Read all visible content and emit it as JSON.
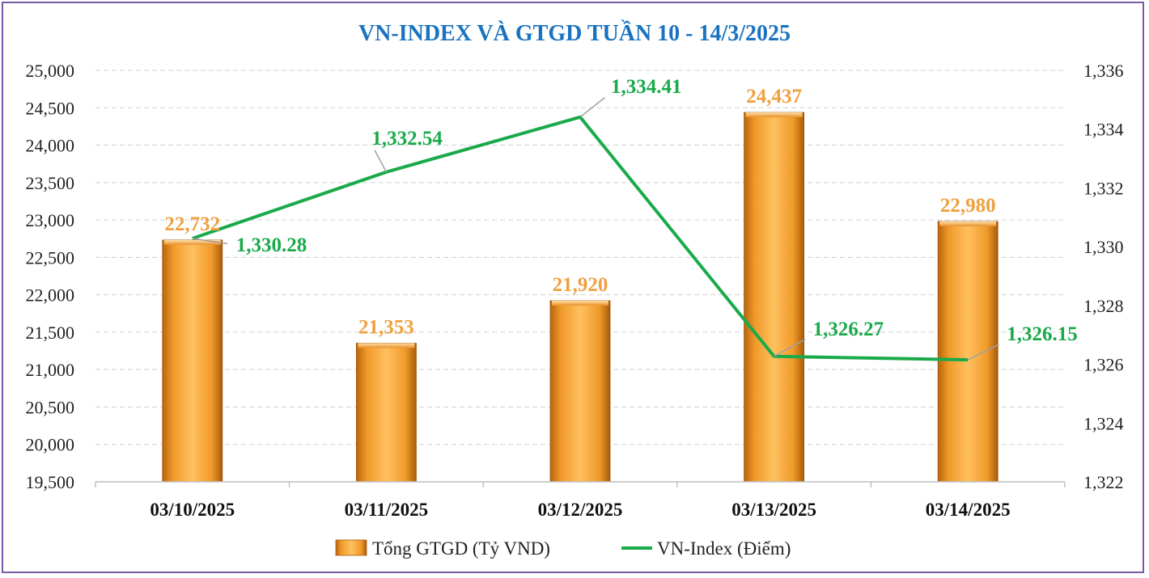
{
  "chart_data": {
    "type": "bar+line",
    "title": "VN-INDEX VÀ GTGD TUẦN 10 - 14/3/2025",
    "categories": [
      "03/10/2025",
      "03/11/2025",
      "03/12/2025",
      "03/13/2025",
      "03/14/2025"
    ],
    "series": [
      {
        "name": "Tổng GTGD (Tỷ VND)",
        "kind": "bar",
        "axis": "left",
        "values": [
          22732,
          21353,
          21920,
          24437,
          22980
        ],
        "labels": [
          "22,732",
          "21,353",
          "21,920",
          "24,437",
          "22,980"
        ],
        "color": "#f5a030"
      },
      {
        "name": "VN-Index (Điểm)",
        "kind": "line",
        "axis": "right",
        "values": [
          1330.28,
          1332.54,
          1334.41,
          1326.27,
          1326.15
        ],
        "labels": [
          "1,330.28",
          "1,332.54",
          "1,334.41",
          "1,326.27",
          "1,326.15"
        ],
        "color": "#1aaa4a"
      }
    ],
    "y_left": {
      "range": [
        19500,
        25000
      ],
      "ticks": [
        "25,000",
        "24,500",
        "24,000",
        "23,500",
        "23,000",
        "22,500",
        "22,000",
        "21,500",
        "21,000",
        "20,500",
        "20,000",
        "19,500"
      ],
      "tick_values": [
        25000,
        24500,
        24000,
        23500,
        23000,
        22500,
        22000,
        21500,
        21000,
        20500,
        20000,
        19500
      ]
    },
    "y_right": {
      "range": [
        1322,
        1336
      ],
      "ticks": [
        "1,336",
        "1,334",
        "1,332",
        "1,330",
        "1,328",
        "1,326",
        "1,324",
        "1,322"
      ],
      "tick_values": [
        1336,
        1334,
        1332,
        1330,
        1328,
        1326,
        1324,
        1322
      ]
    },
    "grid": true,
    "legend": "bottom",
    "colors": {
      "title": "#1a73c0",
      "bar_label": "#f0a040",
      "line_label": "#1aaa4a",
      "border": "#7a5aa6"
    }
  }
}
